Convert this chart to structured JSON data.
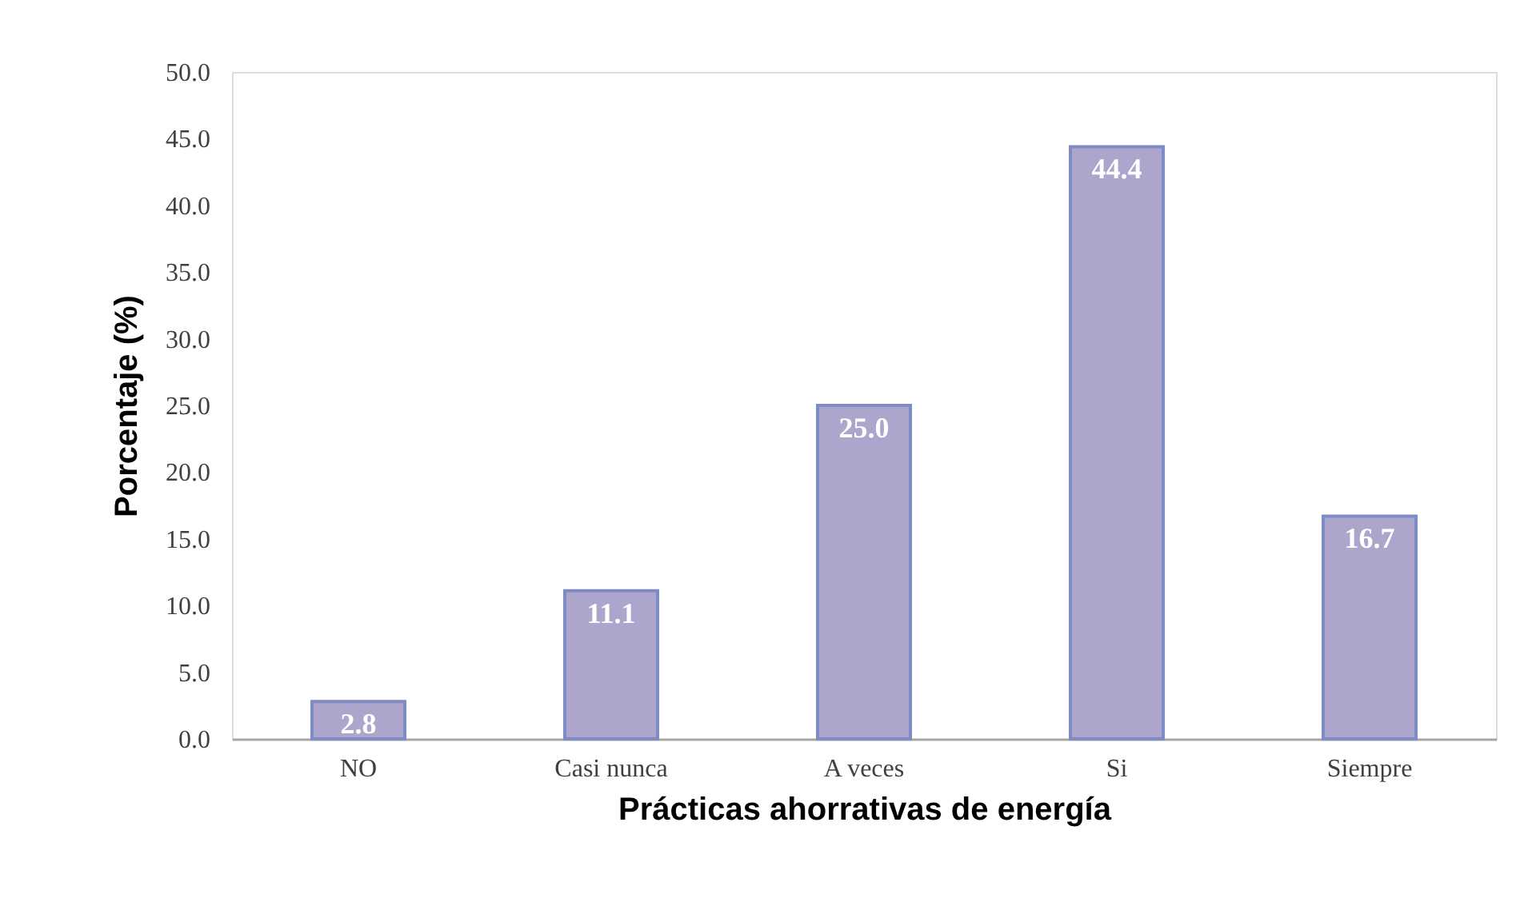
{
  "chart_data": {
    "type": "bar",
    "xlabel": "Prácticas ahorrativas de energía",
    "ylabel": "Porcentaje (%)",
    "categories": [
      "NO",
      "Casi nunca",
      "A veces",
      "Si",
      "Siempre"
    ],
    "values": [
      2.8,
      11.1,
      25.0,
      44.4,
      16.7
    ],
    "color": "#aca5cc",
    "ylim": [
      0,
      50
    ],
    "yticks": [
      {
        "value": 0,
        "label": "0.0"
      },
      {
        "value": 5,
        "label": "5.0"
      },
      {
        "value": 10,
        "label": "10.0"
      },
      {
        "value": 15,
        "label": "15.0"
      },
      {
        "value": 20,
        "label": "20.0"
      },
      {
        "value": 25,
        "label": "25.0"
      },
      {
        "value": 30,
        "label": "30.0"
      },
      {
        "value": 35,
        "label": "35.0"
      },
      {
        "value": 40,
        "label": "40.0"
      },
      {
        "value": 45,
        "label": "45.0"
      },
      {
        "value": 50,
        "label": "50.0"
      }
    ],
    "value_labels": [
      "2.8",
      "11.1",
      "25.0",
      "44.4",
      "16.7"
    ],
    "grid": false
  }
}
